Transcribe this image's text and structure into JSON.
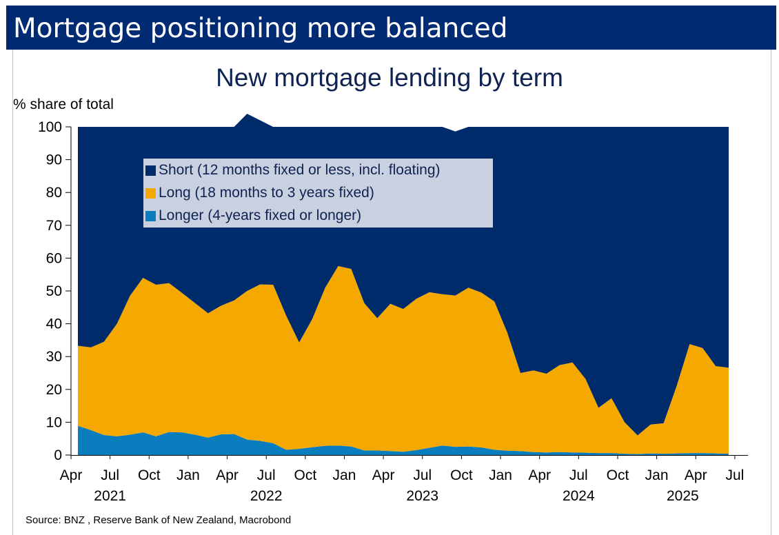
{
  "header": {
    "title": "Mortgage positioning more balanced"
  },
  "source": "Source: BNZ , Reserve Bank of New Zealand, Macrobond",
  "colors": {
    "banner": "#002B73",
    "short": "#002B6B",
    "long": "#F5A800",
    "longer": "#0A7DBF",
    "legend_bg": "#C9D1E0"
  },
  "chart_data": {
    "type": "area",
    "stacked": true,
    "title": "New mortgage lending by term",
    "ylabel": "% share of total",
    "ylim": [
      0,
      100
    ],
    "yticks": [
      0,
      10,
      20,
      30,
      40,
      50,
      60,
      70,
      80,
      90,
      100
    ],
    "x_tick_months": [
      "Apr",
      "Jul",
      "Oct",
      "Jan",
      "Apr",
      "Jul",
      "Oct",
      "Jan",
      "Apr",
      "Jul",
      "Oct",
      "Jan",
      "Apr",
      "Jul",
      "Oct",
      "Jan",
      "Apr",
      "Jul"
    ],
    "x_tick_years": [
      "2021",
      "2022",
      "2023",
      "2024",
      "2025"
    ],
    "x_start": "2021-04",
    "x_end": "2025-06",
    "legend_placement": "top-left",
    "series": [
      {
        "name": "Short (12 months fixed or less, incl. floating)",
        "key": "short",
        "values": [
          66.7,
          67.2,
          65.5,
          60.0,
          51.5,
          46.0,
          48.1,
          47.6,
          50.6,
          53.7,
          56.8,
          54.5,
          52.9,
          54.0,
          50.0,
          48.1,
          57.5,
          65.7,
          58.6,
          49.0,
          42.4,
          43.3,
          53.7,
          58.3,
          53.9,
          55.5,
          52.4,
          50.4,
          51.0,
          50.0,
          49.0,
          50.5,
          53.2,
          62.8,
          75.0,
          74.2,
          75.2,
          72.6,
          71.8,
          76.8,
          85.6,
          82.7,
          90.0,
          94.0,
          90.7,
          90.3,
          79.0,
          66.2,
          67.4,
          72.9,
          73.4
        ]
      },
      {
        "name": "Long (18 months to 3 years fixed)",
        "key": "long",
        "values": [
          24.4,
          25.2,
          28.4,
          34.3,
          42.3,
          47.1,
          46.2,
          45.4,
          42.5,
          40.1,
          37.9,
          39.2,
          40.7,
          45.3,
          47.7,
          48.3,
          40.9,
          32.4,
          39.0,
          48.2,
          54.7,
          54.1,
          44.9,
          40.3,
          44.9,
          43.5,
          46.1,
          47.4,
          46.1,
          46.1,
          48.4,
          47.2,
          45.2,
          35.9,
          23.8,
          24.9,
          24.0,
          26.5,
          27.4,
          22.5,
          13.8,
          16.7,
          9.6,
          5.7,
          8.8,
          9.3,
          20.5,
          33.2,
          32.0,
          26.6,
          26.2
        ]
      },
      {
        "name": "Longer (4-years fixed or longer)",
        "key": "longer",
        "values": [
          8.9,
          7.6,
          6.1,
          5.7,
          6.2,
          6.9,
          5.7,
          7.0,
          6.9,
          6.2,
          5.3,
          6.3,
          6.4,
          4.7,
          4.3,
          3.6,
          1.6,
          1.9,
          2.4,
          2.8,
          2.9,
          2.6,
          1.4,
          1.4,
          1.2,
          1.0,
          1.5,
          2.2,
          2.9,
          2.5,
          2.6,
          2.3,
          1.6,
          1.3,
          1.2,
          0.9,
          0.8,
          0.9,
          0.8,
          0.7,
          0.6,
          0.6,
          0.4,
          0.3,
          0.5,
          0.4,
          0.5,
          0.6,
          0.6,
          0.5,
          0.4
        ]
      }
    ]
  }
}
